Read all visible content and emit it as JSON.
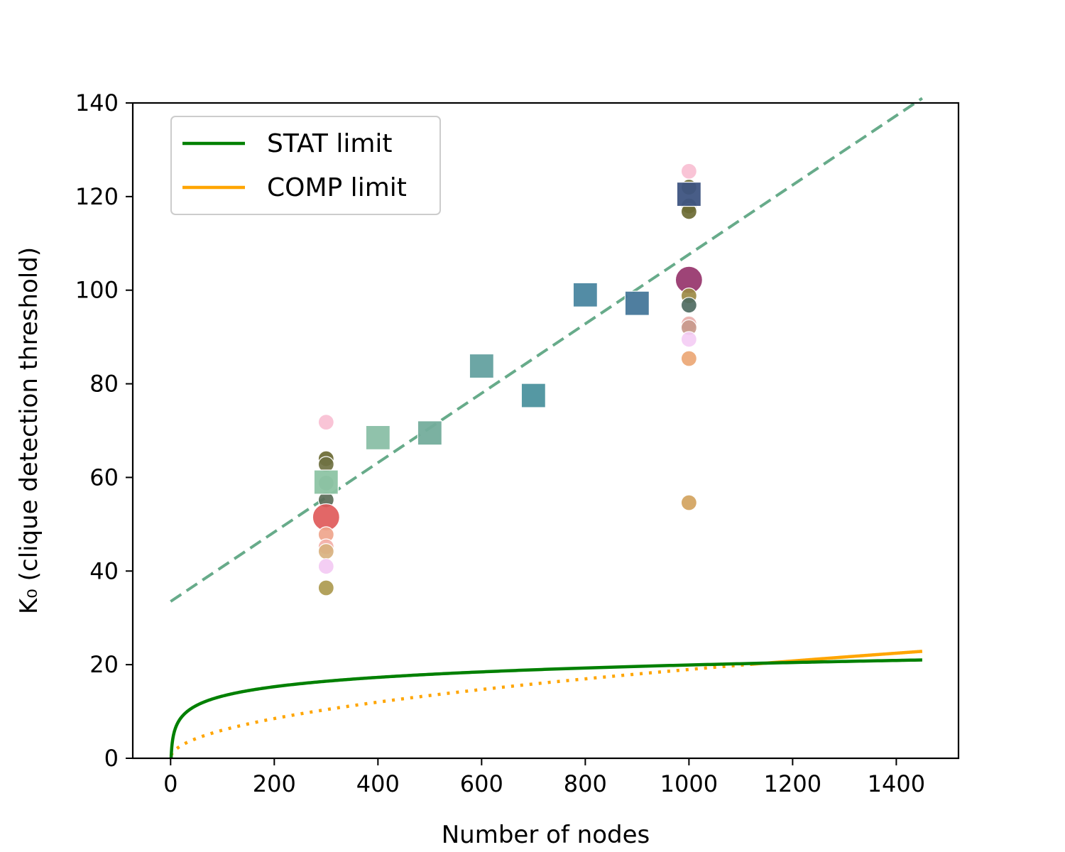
{
  "chart_data": {
    "type": "scatter",
    "xlabel": "Number of nodes",
    "ylabel": "K₀ (clique detection threshold)",
    "xlim": [
      -73,
      1520
    ],
    "ylim": [
      0,
      140
    ],
    "x_ticks": [
      0,
      200,
      400,
      600,
      800,
      1000,
      1200,
      1400
    ],
    "y_ticks": [
      0,
      20,
      40,
      60,
      80,
      100,
      120,
      140
    ],
    "grid": false,
    "legend_position": "top-left",
    "legend": [
      {
        "label": "STAT limit",
        "color": "#008000"
      },
      {
        "label": "COMP limit",
        "color": "#ffa500"
      }
    ],
    "series": [
      {
        "name": "STAT limit",
        "kind": "line",
        "color": "#008000",
        "style": "solid",
        "formula": "2*log2(n)",
        "x_range": [
          1,
          1450
        ]
      },
      {
        "name": "COMP limit",
        "kind": "line",
        "color": "#ffa500",
        "formula": "0.6*sqrt(n)",
        "x_range": [
          1,
          1450
        ],
        "dotted_until_x": 1120,
        "solid_from_x": 1120
      },
      {
        "kind": "trend",
        "color": "#67ab8a",
        "style": "dashed",
        "points": [
          [
            0,
            33.5
          ],
          [
            1450,
            141
          ]
        ]
      },
      {
        "kind": "circles",
        "points": [
          {
            "x": 300,
            "y": 71.8,
            "color": "#f8bfd2"
          },
          {
            "x": 300,
            "y": 64.0,
            "color": "#6b6a33"
          },
          {
            "x": 300,
            "y": 62.8,
            "color": "#707243"
          },
          {
            "x": 300,
            "y": 58.8,
            "color": "#6d9c7b"
          },
          {
            "x": 300,
            "y": 55.2,
            "color": "#5b6d58"
          },
          {
            "x": 300,
            "y": 51.5,
            "color": "#e05a5a",
            "large": true
          },
          {
            "x": 300,
            "y": 47.8,
            "color": "#efa58c"
          },
          {
            "x": 300,
            "y": 45.2,
            "color": "#f3b0a8"
          },
          {
            "x": 300,
            "y": 44.2,
            "color": "#d8b280"
          },
          {
            "x": 300,
            "y": 41.0,
            "color": "#f3caf3"
          },
          {
            "x": 300,
            "y": 36.4,
            "color": "#ad9a4f"
          },
          {
            "x": 1000,
            "y": 125.4,
            "color": "#f8bfd2"
          },
          {
            "x": 1000,
            "y": 122.0,
            "color": "#6b6a33"
          },
          {
            "x": 1000,
            "y": 118.0,
            "color": "#707243"
          },
          {
            "x": 1000,
            "y": 116.8,
            "color": "#6b6a33"
          },
          {
            "x": 1000,
            "y": 102.2,
            "color": "#96346b",
            "large": true
          },
          {
            "x": 1000,
            "y": 98.8,
            "color": "#9c8a45"
          },
          {
            "x": 1000,
            "y": 96.8,
            "color": "#4f6b62"
          },
          {
            "x": 1000,
            "y": 92.8,
            "color": "#e8b0ac"
          },
          {
            "x": 1000,
            "y": 92.0,
            "color": "#c89a8c"
          },
          {
            "x": 1000,
            "y": 89.5,
            "color": "#f4cdf4"
          },
          {
            "x": 1000,
            "y": 85.4,
            "color": "#eba775"
          },
          {
            "x": 1000,
            "y": 54.6,
            "color": "#d2a35e"
          }
        ]
      },
      {
        "kind": "squares",
        "points": [
          {
            "x": 300,
            "y": 59.0,
            "color": "#8dc4a4"
          },
          {
            "x": 400,
            "y": 68.5,
            "color": "#8abfa6"
          },
          {
            "x": 500,
            "y": 69.5,
            "color": "#74ad9c"
          },
          {
            "x": 600,
            "y": 83.8,
            "color": "#64a1a0"
          },
          {
            "x": 700,
            "y": 77.5,
            "color": "#4c929e"
          },
          {
            "x": 800,
            "y": 99.0,
            "color": "#4a86a0"
          },
          {
            "x": 900,
            "y": 97.2,
            "color": "#46779a"
          },
          {
            "x": 1000,
            "y": 120.5,
            "color": "#3e5481"
          }
        ]
      }
    ]
  }
}
